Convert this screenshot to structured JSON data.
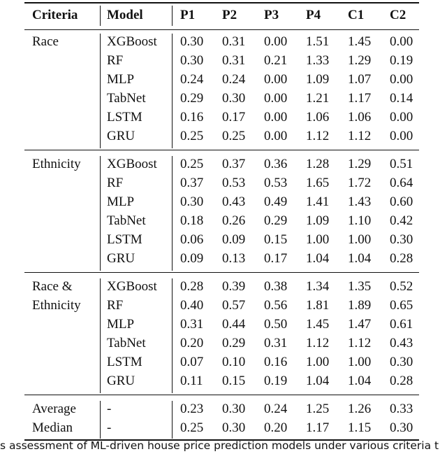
{
  "table": {
    "header": [
      "Criteria",
      "Model",
      "P1",
      "P2",
      "P3",
      "P4",
      "C1",
      "C2"
    ],
    "groups": [
      {
        "criteria": "Race",
        "rows": [
          {
            "model": "XGBoost",
            "values": [
              "0.30",
              "0.31",
              "0.00",
              "1.51",
              "1.45",
              "0.00"
            ]
          },
          {
            "model": "RF",
            "values": [
              "0.30",
              "0.31",
              "0.21",
              "1.33",
              "1.29",
              "0.19"
            ]
          },
          {
            "model": "MLP",
            "values": [
              "0.24",
              "0.24",
              "0.00",
              "1.09",
              "1.07",
              "0.00"
            ]
          },
          {
            "model": "TabNet",
            "values": [
              "0.29",
              "0.30",
              "0.00",
              "1.21",
              "1.17",
              "0.14"
            ]
          },
          {
            "model": "LSTM",
            "values": [
              "0.16",
              "0.17",
              "0.00",
              "1.06",
              "1.06",
              "0.00"
            ]
          },
          {
            "model": "GRU",
            "values": [
              "0.25",
              "0.25",
              "0.00",
              "1.12",
              "1.12",
              "0.00"
            ]
          }
        ]
      },
      {
        "criteria": "Ethnicity",
        "rows": [
          {
            "model": "XGBoost",
            "values": [
              "0.25",
              "0.37",
              "0.36",
              "1.28",
              "1.29",
              "0.51"
            ]
          },
          {
            "model": "RF",
            "values": [
              "0.37",
              "0.53",
              "0.53",
              "1.65",
              "1.72",
              "0.64"
            ]
          },
          {
            "model": "MLP",
            "values": [
              "0.30",
              "0.43",
              "0.49",
              "1.41",
              "1.43",
              "0.60"
            ]
          },
          {
            "model": "TabNet",
            "values": [
              "0.18",
              "0.26",
              "0.29",
              "1.09",
              "1.10",
              "0.42"
            ]
          },
          {
            "model": "LSTM",
            "values": [
              "0.06",
              "0.09",
              "0.15",
              "1.00",
              "1.00",
              "0.30"
            ]
          },
          {
            "model": "GRU",
            "values": [
              "0.09",
              "0.13",
              "0.17",
              "1.04",
              "1.04",
              "0.28"
            ]
          }
        ]
      },
      {
        "criteria": "Race & Ethnicity",
        "rows": [
          {
            "model": "XGBoost",
            "values": [
              "0.28",
              "0.39",
              "0.38",
              "1.34",
              "1.35",
              "0.52"
            ]
          },
          {
            "model": "RF",
            "values": [
              "0.40",
              "0.57",
              "0.56",
              "1.81",
              "1.89",
              "0.65"
            ]
          },
          {
            "model": "MLP",
            "values": [
              "0.31",
              "0.44",
              "0.50",
              "1.45",
              "1.47",
              "0.61"
            ]
          },
          {
            "model": "TabNet",
            "values": [
              "0.20",
              "0.29",
              "0.31",
              "1.12",
              "1.12",
              "0.43"
            ]
          },
          {
            "model": "LSTM",
            "values": [
              "0.07",
              "0.10",
              "0.16",
              "1.00",
              "1.00",
              "0.30"
            ]
          },
          {
            "model": "GRU",
            "values": [
              "0.11",
              "0.15",
              "0.19",
              "1.04",
              "1.04",
              "0.28"
            ]
          }
        ]
      }
    ],
    "summary": [
      {
        "criteria": "Average",
        "model": "-",
        "values": [
          "0.23",
          "0.30",
          "0.24",
          "1.25",
          "1.26",
          "0.33"
        ]
      },
      {
        "criteria": "Median",
        "model": "-",
        "values": [
          "0.25",
          "0.30",
          "0.20",
          "1.17",
          "1.15",
          "0.30"
        ]
      }
    ]
  },
  "caption": "s assessment of ML-driven house price prediction models under various criteria t"
}
